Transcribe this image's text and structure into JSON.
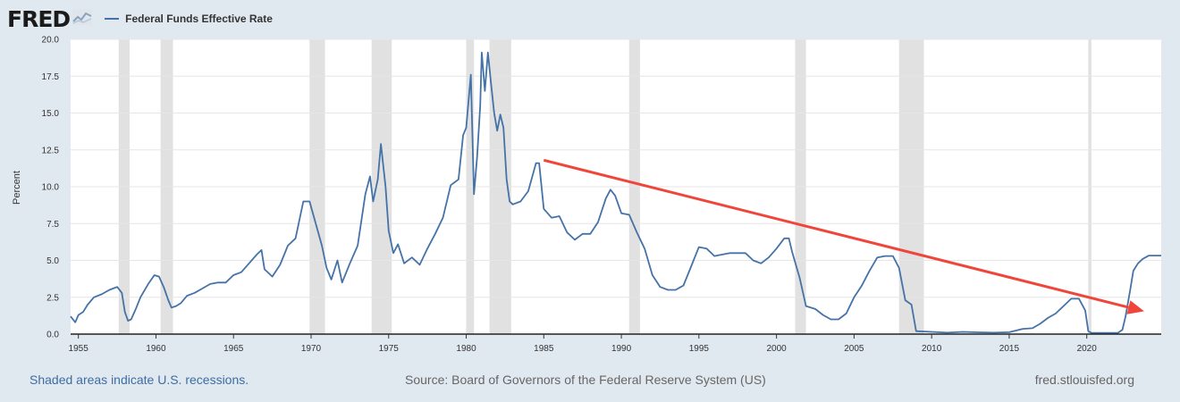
{
  "header": {
    "logo_text": "FRED",
    "logo_icon": "sparkline-chart-icon",
    "legend_label": "Federal Funds Effective Rate"
  },
  "colors": {
    "line": "#4572a7",
    "recession": "#e1e1e1",
    "trend_arrow": "#f0453a",
    "background": "#e1e9f0",
    "plot": "#ffffff"
  },
  "chart_data": {
    "type": "line",
    "title": "",
    "xlabel": "",
    "ylabel": "Percent",
    "xlim": [
      1954.5,
      2024.8
    ],
    "ylim": [
      0,
      20
    ],
    "ytick_labels": [
      "0.0",
      "2.5",
      "5.0",
      "7.5",
      "10.0",
      "12.5",
      "15.0",
      "17.5",
      "20.0"
    ],
    "ytick_values": [
      0,
      2.5,
      5,
      7.5,
      10,
      12.5,
      15,
      17.5,
      20
    ],
    "xtick_labels": [
      "1955",
      "1960",
      "1965",
      "1970",
      "1975",
      "1980",
      "1985",
      "1990",
      "1995",
      "2000",
      "2005",
      "2010",
      "2015",
      "2020"
    ],
    "xtick_values": [
      1955,
      1960,
      1965,
      1970,
      1975,
      1980,
      1985,
      1990,
      1995,
      2000,
      2005,
      2010,
      2015,
      2020
    ],
    "recessions": [
      [
        1957.6,
        1958.3
      ],
      [
        1960.3,
        1961.1
      ],
      [
        1969.9,
        1970.9
      ],
      [
        1973.9,
        1975.2
      ],
      [
        1980.0,
        1980.5
      ],
      [
        1981.5,
        1982.9
      ],
      [
        1990.5,
        1991.2
      ],
      [
        2001.2,
        2001.9
      ],
      [
        2007.9,
        2009.5
      ],
      [
        2020.1,
        2020.3
      ]
    ],
    "series": [
      {
        "name": "Federal Funds Effective Rate",
        "x": [
          1954.5,
          1954.8,
          1955.0,
          1955.3,
          1955.6,
          1956.0,
          1956.5,
          1957.0,
          1957.5,
          1957.8,
          1958.0,
          1958.2,
          1958.4,
          1958.7,
          1959.0,
          1959.5,
          1959.9,
          1960.2,
          1960.5,
          1960.8,
          1961.0,
          1961.3,
          1961.6,
          1962.0,
          1962.5,
          1963.0,
          1963.5,
          1964.0,
          1964.5,
          1965.0,
          1965.5,
          1966.0,
          1966.5,
          1966.8,
          1967.0,
          1967.5,
          1968.0,
          1968.5,
          1969.0,
          1969.5,
          1969.9,
          1970.3,
          1970.7,
          1971.0,
          1971.3,
          1971.7,
          1972.0,
          1972.5,
          1973.0,
          1973.5,
          1973.8,
          1974.0,
          1974.3,
          1974.5,
          1974.8,
          1975.0,
          1975.3,
          1975.6,
          1976.0,
          1976.5,
          1977.0,
          1977.5,
          1978.0,
          1978.5,
          1979.0,
          1979.5,
          1979.8,
          1980.0,
          1980.3,
          1980.5,
          1980.7,
          1980.9,
          1981.0,
          1981.2,
          1981.4,
          1981.6,
          1981.8,
          1982.0,
          1982.2,
          1982.4,
          1982.6,
          1982.8,
          1983.0,
          1983.5,
          1984.0,
          1984.5,
          1984.7,
          1985.0,
          1985.5,
          1986.0,
          1986.5,
          1987.0,
          1987.5,
          1988.0,
          1988.5,
          1989.0,
          1989.3,
          1989.6,
          1990.0,
          1990.5,
          1991.0,
          1991.5,
          1992.0,
          1992.5,
          1993.0,
          1993.5,
          1994.0,
          1994.5,
          1995.0,
          1995.5,
          1996.0,
          1997.0,
          1998.0,
          1998.5,
          1999.0,
          1999.5,
          2000.0,
          2000.5,
          2000.8,
          2001.0,
          2001.5,
          2001.9,
          2002.5,
          2003.0,
          2003.5,
          2004.0,
          2004.5,
          2005.0,
          2005.5,
          2006.0,
          2006.5,
          2007.0,
          2007.5,
          2007.9,
          2008.3,
          2008.7,
          2009.0,
          2010.0,
          2011.0,
          2012.0,
          2013.0,
          2014.0,
          2015.0,
          2015.9,
          2016.5,
          2017.0,
          2017.5,
          2018.0,
          2018.5,
          2019.0,
          2019.5,
          2019.9,
          2020.1,
          2020.3,
          2021.0,
          2022.0,
          2022.3,
          2022.5,
          2022.8,
          2023.0,
          2023.3,
          2023.6,
          2024.0,
          2024.5,
          2024.8
        ],
        "values": [
          1.2,
          0.8,
          1.3,
          1.5,
          2.0,
          2.5,
          2.7,
          3.0,
          3.2,
          2.8,
          1.5,
          0.9,
          1.0,
          1.7,
          2.5,
          3.4,
          4.0,
          3.9,
          3.2,
          2.3,
          1.8,
          1.9,
          2.1,
          2.6,
          2.8,
          3.1,
          3.4,
          3.5,
          3.5,
          4.0,
          4.2,
          4.8,
          5.4,
          5.7,
          4.4,
          3.9,
          4.7,
          6.0,
          6.5,
          9.0,
          9.0,
          7.5,
          6.0,
          4.5,
          3.7,
          5.0,
          3.5,
          4.8,
          6.0,
          9.5,
          10.7,
          9.0,
          10.5,
          12.9,
          10.0,
          7.0,
          5.5,
          6.1,
          4.8,
          5.2,
          4.7,
          5.8,
          6.8,
          7.9,
          10.1,
          10.5,
          13.5,
          14.0,
          17.6,
          9.5,
          12.0,
          15.5,
          19.1,
          16.5,
          19.1,
          17.0,
          15.0,
          13.8,
          14.9,
          14.0,
          10.5,
          9.0,
          8.8,
          9.0,
          9.7,
          11.6,
          11.6,
          8.5,
          7.9,
          8.0,
          6.9,
          6.4,
          6.8,
          6.8,
          7.6,
          9.2,
          9.8,
          9.4,
          8.2,
          8.1,
          6.9,
          5.8,
          4.0,
          3.2,
          3.0,
          3.0,
          3.3,
          4.6,
          5.9,
          5.8,
          5.3,
          5.5,
          5.5,
          5.0,
          4.8,
          5.2,
          5.8,
          6.5,
          6.5,
          5.6,
          3.8,
          1.9,
          1.7,
          1.3,
          1.0,
          1.0,
          1.4,
          2.5,
          3.3,
          4.3,
          5.2,
          5.3,
          5.3,
          4.5,
          2.3,
          2.0,
          0.2,
          0.15,
          0.1,
          0.15,
          0.12,
          0.1,
          0.13,
          0.36,
          0.4,
          0.7,
          1.1,
          1.4,
          1.9,
          2.4,
          2.4,
          1.6,
          0.2,
          0.08,
          0.08,
          0.08,
          0.3,
          1.2,
          3.0,
          4.3,
          4.8,
          5.1,
          5.33,
          5.33,
          5.33
        ]
      }
    ],
    "annotations": [
      {
        "type": "arrow",
        "from": [
          1985.0,
          11.8
        ],
        "to": [
          2023.7,
          1.55
        ],
        "color": "#f0453a"
      }
    ]
  },
  "footer": {
    "recession_note": "Shaded areas indicate U.S. recessions.",
    "source": "Source: Board of Governors of the Federal Reserve System (US)",
    "site": "fred.stlouisfed.org"
  }
}
